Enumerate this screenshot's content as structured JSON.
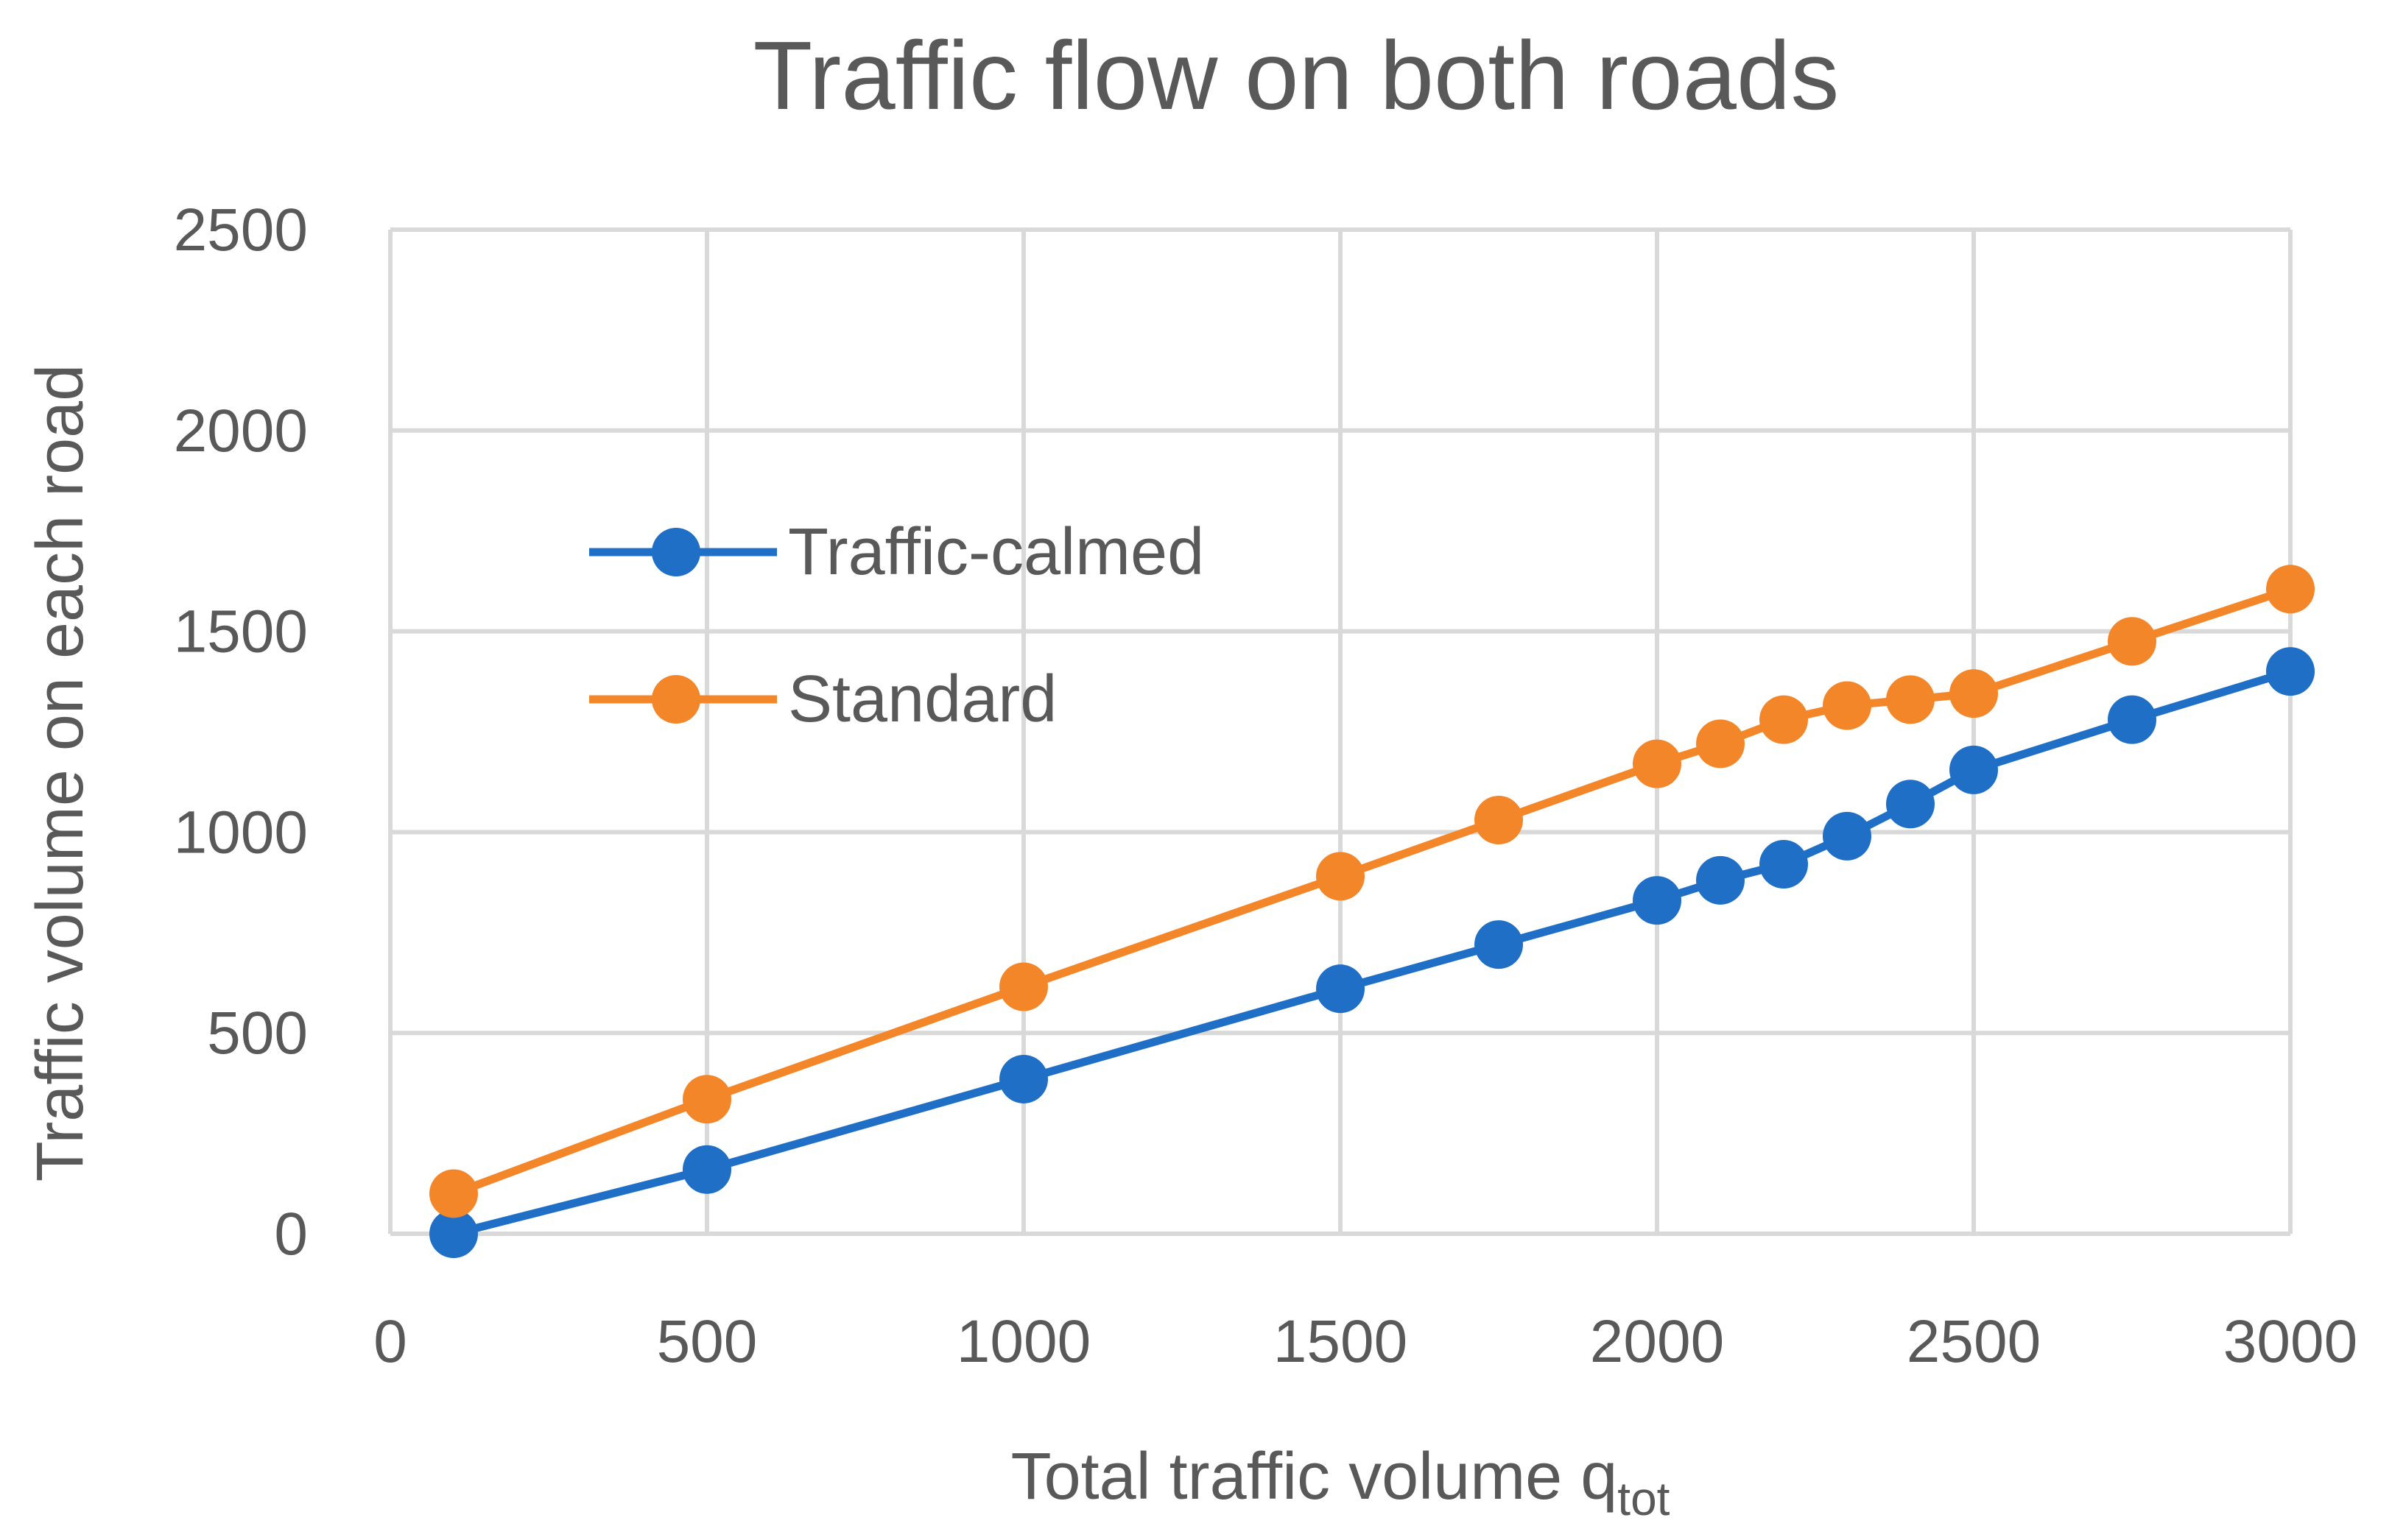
{
  "chart_data": {
    "type": "line",
    "title": "Traffic flow on both roads",
    "xlabel": "Total traffic volume q",
    "xlabel_subscript": "tot",
    "ylabel": "Traffic volume on each road",
    "xlim": [
      0,
      3000
    ],
    "ylim": [
      0,
      2500
    ],
    "xticks": [
      0,
      500,
      1000,
      1500,
      2000,
      2500,
      3000
    ],
    "yticks": [
      0,
      500,
      1000,
      1500,
      2000,
      2500
    ],
    "grid": true,
    "legend_position": "upper-left-inside",
    "series": [
      {
        "name": "Traffic-calmed",
        "color": "#1f6fc6",
        "x": [
          100,
          500,
          1000,
          1500,
          1750,
          2000,
          2100,
          2200,
          2300,
          2400,
          2500,
          2750,
          3000
        ],
        "y": [
          0,
          160,
          385,
          610,
          720,
          830,
          880,
          920,
          990,
          1070,
          1155,
          1280,
          1400
        ]
      },
      {
        "name": "Standard",
        "color": "#f4862a",
        "x": [
          100,
          500,
          1000,
          1500,
          1750,
          2000,
          2100,
          2200,
          2300,
          2400,
          2500,
          2750,
          3000
        ],
        "y": [
          100,
          335,
          615,
          890,
          1030,
          1170,
          1220,
          1280,
          1315,
          1330,
          1345,
          1475,
          1605
        ]
      }
    ]
  }
}
